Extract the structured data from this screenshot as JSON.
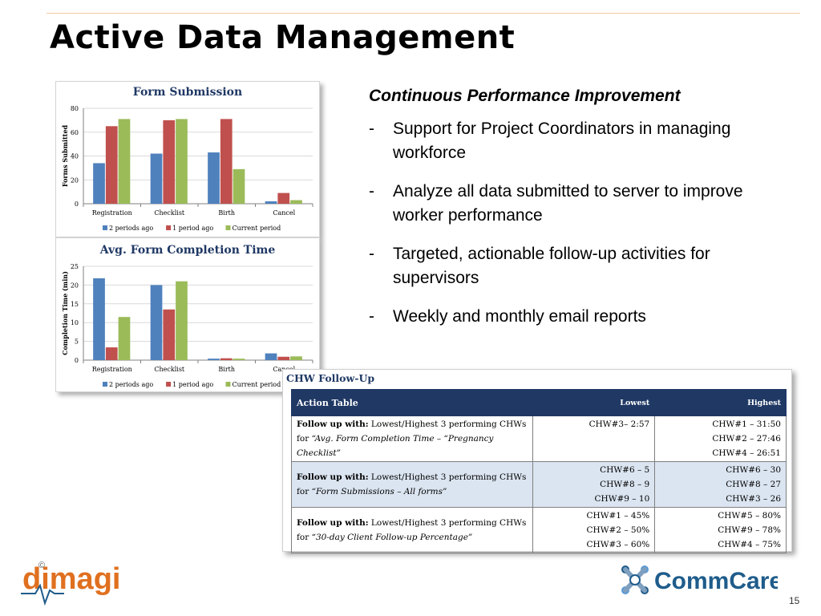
{
  "slide": {
    "title": "Active Data Management",
    "page_number": "15"
  },
  "content": {
    "heading": "Continuous Performance Improvement",
    "bullets": [
      {
        "dash": "-",
        "text": "Support for Project Coordinators in managing workforce"
      },
      {
        "dash": "-",
        "text": "Analyze all data submitted to server to improve worker performance"
      },
      {
        "dash": "-",
        "text": "Targeted, actionable follow-up activities for supervisors"
      },
      {
        "dash": "-",
        "text": "Weekly and monthly email reports"
      }
    ]
  },
  "chart_data": [
    {
      "type": "bar",
      "title": "Form Submission",
      "ylabel": "Forms Submitted",
      "xlabel": "",
      "categories": [
        "Registration",
        "Checklist",
        "Birth",
        "Cancel"
      ],
      "ylim": [
        0,
        80
      ],
      "yticks": [
        0,
        20,
        40,
        60,
        80
      ],
      "grid": true,
      "legend": "bottom",
      "series": [
        {
          "name": "2 periods ago",
          "color": "#4f81bd",
          "values": [
            34,
            42,
            43,
            2
          ]
        },
        {
          "name": "1 period ago",
          "color": "#c0504d",
          "values": [
            65,
            70,
            71,
            9
          ]
        },
        {
          "name": "Current period",
          "color": "#9bbb59",
          "values": [
            71,
            71,
            29,
            3
          ]
        }
      ]
    },
    {
      "type": "bar",
      "title": "Avg. Form Completion Time",
      "ylabel": "Completion Time (min)",
      "xlabel": "",
      "categories": [
        "Registration",
        "Checklist",
        "Birth",
        "Cancel"
      ],
      "ylim": [
        0,
        25
      ],
      "yticks": [
        0,
        5,
        10,
        15,
        20,
        25
      ],
      "grid": true,
      "legend": "bottom",
      "series": [
        {
          "name": "2 periods ago",
          "color": "#4f81bd",
          "values": [
            21.8,
            20,
            0.4,
            1.8
          ]
        },
        {
          "name": "1 period ago",
          "color": "#c0504d",
          "values": [
            3.4,
            13.5,
            0.5,
            0.9
          ]
        },
        {
          "name": "Current period",
          "color": "#9bbb59",
          "values": [
            11.5,
            21,
            0.4,
            1.0
          ]
        }
      ]
    }
  ],
  "table": {
    "title": "CHW Follow-Up",
    "headers": [
      "Action Table",
      "Lowest",
      "Highest"
    ],
    "rows": [
      {
        "label": "Follow up with:",
        "desc_plain": " Lowest/Highest 3 performing CHWs for ",
        "desc_italic": "“Avg. Form Completion Time – “Pregnancy Checklist”",
        "lowest": [
          "CHW#3– 2:57"
        ],
        "highest": [
          "CHW#1 – 31:50",
          "CHW#2 – 27:46",
          "CHW#4 – 26:51"
        ]
      },
      {
        "label": "Follow up with:",
        "desc_plain": " Lowest/Highest 3 performing CHWs for ",
        "desc_italic": "“Form Submissions – All forms”",
        "lowest": [
          "CHW#6 – 5",
          "CHW#8 – 9",
          "CHW#9 – 10"
        ],
        "highest": [
          "CHW#6 – 30",
          "CHW#8 – 27",
          "CHW#3 – 26"
        ]
      },
      {
        "label": "Follow up with:",
        "desc_plain": " Lowest/Highest 3 performing CHWs for ",
        "desc_italic": "“30-day Client Follow-up Percentage”",
        "lowest": [
          "CHW#1 – 45%",
          "CHW#2 – 50%",
          "CHW#3 – 60%"
        ],
        "highest": [
          "CHW#5 – 80%",
          "CHW#9 – 78%",
          "CHW#4 – 75%"
        ]
      }
    ]
  },
  "logos": {
    "dimagi": {
      "text": "dimagi",
      "mark": "©",
      "color": "#e0701f"
    },
    "commcare": {
      "text": "CommCare",
      "color": "#1f5c8b"
    }
  }
}
